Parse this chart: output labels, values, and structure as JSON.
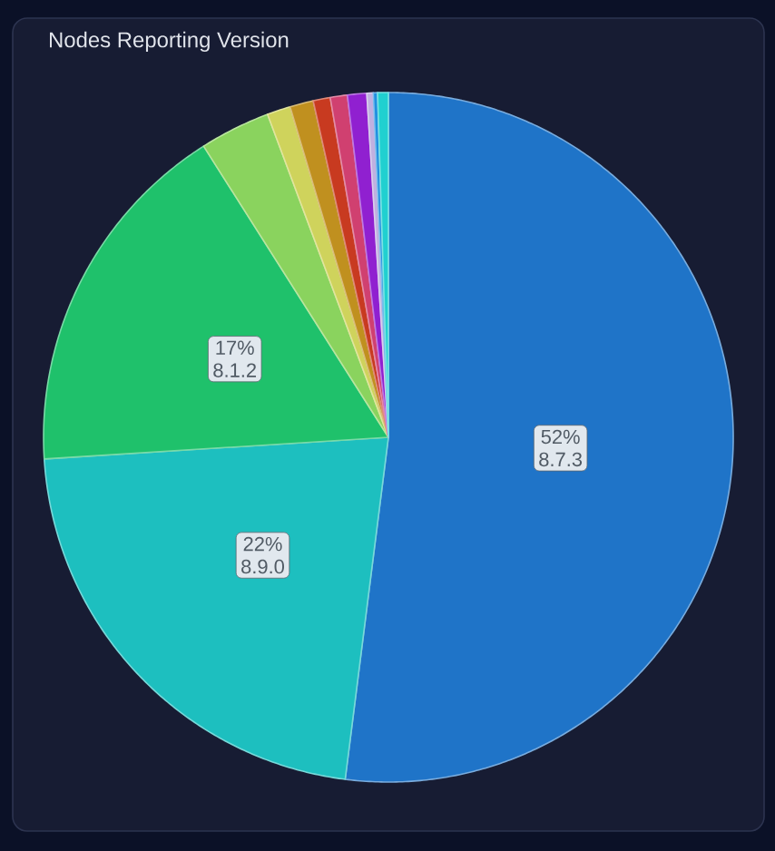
{
  "chart_data": {
    "type": "pie",
    "title": "Nodes Reporting Version",
    "categories": [
      "8.7.3",
      "8.9.0",
      "8.1.2",
      null,
      null,
      null,
      null,
      null,
      null,
      null,
      null,
      null
    ],
    "values": [
      52,
      22,
      17,
      3.3,
      1.1,
      1.1,
      0.8,
      0.8,
      0.9,
      0.3,
      0.2,
      0.5
    ],
    "value_labels": [
      "52%",
      "22%",
      "17%",
      null,
      null,
      null,
      null,
      null,
      null,
      null,
      null,
      null
    ],
    "colors": [
      "#1f74c8",
      "#1dbfbf",
      "#1fc16b",
      "#8ad35e",
      "#cfd35c",
      "#c0901f",
      "#c83a20",
      "#d04070",
      "#9020d0",
      "#c0b0e0",
      "#2090e0",
      "#20d0d0"
    ]
  }
}
